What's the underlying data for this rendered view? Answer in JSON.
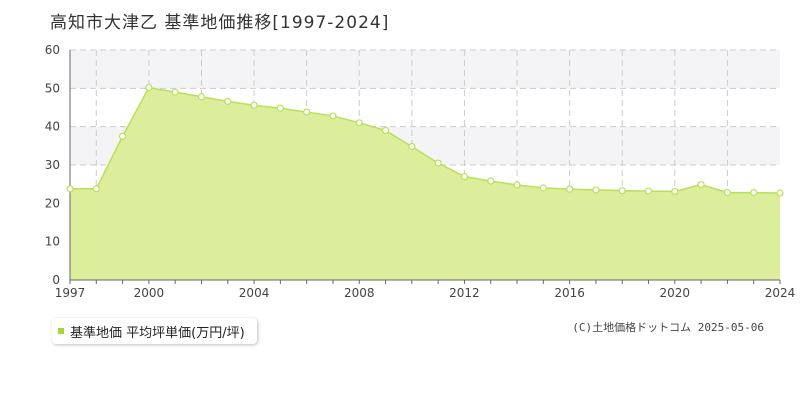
{
  "title": "高知市大津乙 基準地価推移[1997-2024]",
  "legend": {
    "label": "基準地価 平均坪単価(万円/坪)"
  },
  "credit": "(C)土地価格ドットコム 2025-05-06",
  "colors": {
    "fill": "#dcee9b",
    "line": "#b8e05a",
    "marker_border": "#b8e05a",
    "marker_fill": "#ffffff",
    "band": "#f4f4f7",
    "grid": "#cccccc",
    "axis": "#666666",
    "legend_swatch": "#a8d63f"
  },
  "chart_data": {
    "type": "area",
    "title": "高知市大津乙 基準地価推移[1997-2024]",
    "xlabel": "",
    "ylabel": "",
    "xlim": [
      1997,
      2024
    ],
    "ylim": [
      0,
      60
    ],
    "x_ticks": [
      1997,
      2000,
      2004,
      2008,
      2012,
      2016,
      2020,
      2024
    ],
    "y_ticks": [
      0,
      10,
      20,
      30,
      40,
      50,
      60
    ],
    "grid": true,
    "legend": "bottom-left",
    "series": [
      {
        "name": "基準地価 平均坪単価(万円/坪)",
        "x": [
          1997,
          1998,
          1999,
          2000,
          2001,
          2002,
          2003,
          2004,
          2005,
          2006,
          2007,
          2008,
          2009,
          2010,
          2011,
          2012,
          2013,
          2014,
          2015,
          2016,
          2017,
          2018,
          2019,
          2020,
          2021,
          2022,
          2023,
          2024
        ],
        "values": [
          23.8,
          23.8,
          37.5,
          50.2,
          49.0,
          47.8,
          46.6,
          45.6,
          44.8,
          43.8,
          42.8,
          41.0,
          39.0,
          34.8,
          30.5,
          27.0,
          25.8,
          24.8,
          24.0,
          23.7,
          23.5,
          23.3,
          23.2,
          23.1,
          24.9,
          22.8,
          22.8,
          22.7
        ]
      }
    ]
  }
}
